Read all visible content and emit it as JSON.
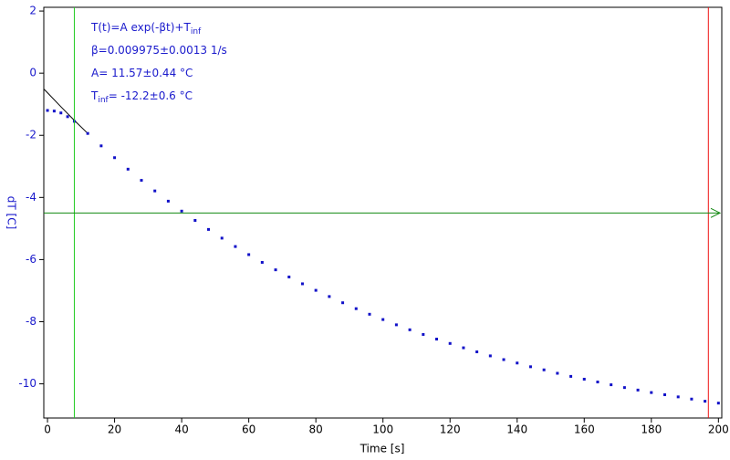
{
  "chart_data": {
    "type": "scatter",
    "xlabel": "Time [s]",
    "ylabel": "dT [C]",
    "xlim": [
      -1.1,
      201
    ],
    "ylim": [
      -11.1,
      2.12
    ],
    "xticks": [
      0,
      20,
      40,
      60,
      80,
      100,
      120,
      140,
      160,
      180,
      200
    ],
    "yticks": [
      -10,
      -8,
      -6,
      -4,
      -2,
      0,
      2
    ],
    "series": [
      {
        "color": "#000000",
        "style": "line",
        "x": [
          -1,
          0,
          4,
          8,
          12
        ],
        "values": [
          -0.52,
          -0.63,
          -1.08,
          -1.52,
          -1.94
        ]
      },
      {
        "color": "#1010c8",
        "style": "points",
        "x": [
          0,
          2,
          4,
          6,
          8,
          12,
          16,
          20,
          24,
          28,
          32,
          36,
          40,
          44,
          48,
          52,
          56,
          60,
          64,
          68,
          72,
          76,
          80,
          84,
          88,
          92,
          96,
          100,
          104,
          108,
          112,
          116,
          120,
          124,
          128,
          132,
          136,
          140,
          144,
          148,
          152,
          156,
          160,
          164,
          168,
          172,
          176,
          180,
          184,
          188,
          192,
          196,
          200
        ],
        "values": [
          -1.2,
          -1.22,
          -1.28,
          -1.4,
          -1.55,
          -1.94,
          -2.34,
          -2.72,
          -3.09,
          -3.45,
          -3.79,
          -4.12,
          -4.44,
          -4.74,
          -5.03,
          -5.31,
          -5.58,
          -5.84,
          -6.09,
          -6.33,
          -6.56,
          -6.78,
          -6.99,
          -7.19,
          -7.39,
          -7.58,
          -7.76,
          -7.93,
          -8.1,
          -8.26,
          -8.41,
          -8.56,
          -8.7,
          -8.84,
          -8.97,
          -9.1,
          -9.22,
          -9.33,
          -9.45,
          -9.55,
          -9.66,
          -9.76,
          -9.85,
          -9.94,
          -10.03,
          -10.12,
          -10.2,
          -10.28,
          -10.35,
          -10.42,
          -10.49,
          -10.56,
          -10.62
        ]
      }
    ],
    "cursors": [
      {
        "axis": "x",
        "value": 8,
        "color": "#22cc22"
      },
      {
        "axis": "x",
        "value": 197,
        "color": "#ee1111"
      },
      {
        "axis": "y",
        "value": -4.5,
        "color": "#118811"
      }
    ],
    "annotations": [
      [
        {
          "text": "T(t)=A exp(-βt)+T"
        },
        {
          "text": "inf",
          "sub": true
        }
      ],
      [
        {
          "text": "β=0.009975±0.0013 1/s"
        }
      ],
      [
        {
          "text": "A= 11.57±0.44 °C"
        }
      ],
      [
        {
          "text": "T"
        },
        {
          "text": "inf",
          "sub": true
        },
        {
          "text": "= -12.2±0.6 °C"
        }
      ]
    ]
  }
}
